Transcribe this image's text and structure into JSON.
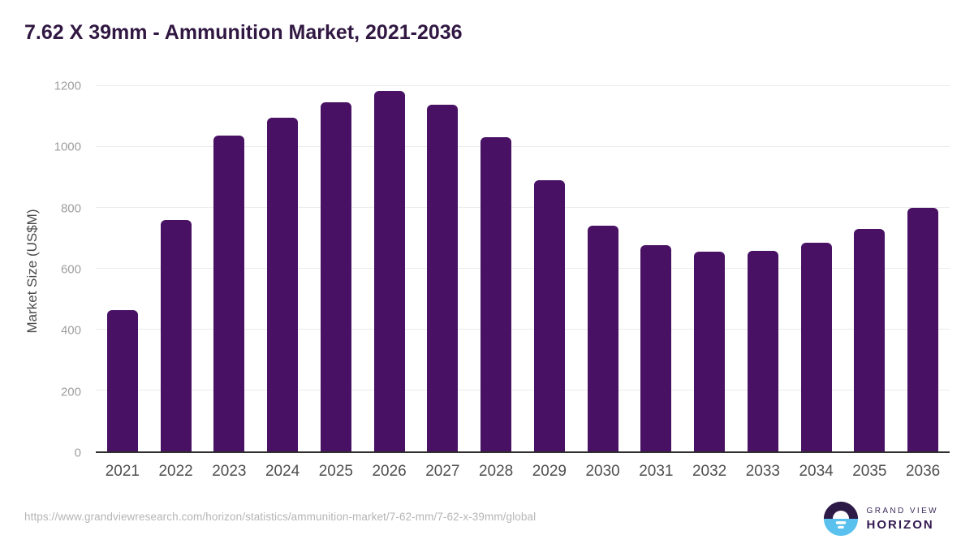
{
  "chart_data": {
    "type": "bar",
    "title": "7.62 X 39mm - Ammunition Market, 2021-2036",
    "categories": [
      "2021",
      "2022",
      "2023",
      "2024",
      "2025",
      "2026",
      "2027",
      "2028",
      "2029",
      "2030",
      "2031",
      "2032",
      "2033",
      "2034",
      "2035",
      "2036"
    ],
    "values": [
      463,
      760,
      1037,
      1095,
      1148,
      1183,
      1140,
      1032,
      890,
      742,
      678,
      655,
      658,
      685,
      730,
      801
    ],
    "xlabel": "",
    "ylabel": "Market Size (US$M)",
    "ylim": [
      0,
      1200
    ],
    "yticks": [
      0,
      200,
      400,
      600,
      800,
      1000,
      1200
    ],
    "grid": true,
    "legend": false,
    "bar_color": "#481164"
  },
  "footer": {
    "source_url": "https://www.grandviewresearch.com/horizon/statistics/ammunition-market/7-62-mm/7-62-x-39mm/global",
    "logo": {
      "brand_line1": "GRAND VIEW",
      "brand_line2": "HORIZON"
    }
  },
  "colors": {
    "bar": "#481164",
    "title_text": "#311843",
    "axis_line": "#2f2f2f",
    "gridline": "#ebebeb",
    "ytick_text": "#9e9e9e",
    "xtick_text": "#4f4f4f",
    "source_text": "#b5b5b5",
    "logo_dark": "#2e1a47",
    "logo_blue": "#5ac1ee"
  }
}
